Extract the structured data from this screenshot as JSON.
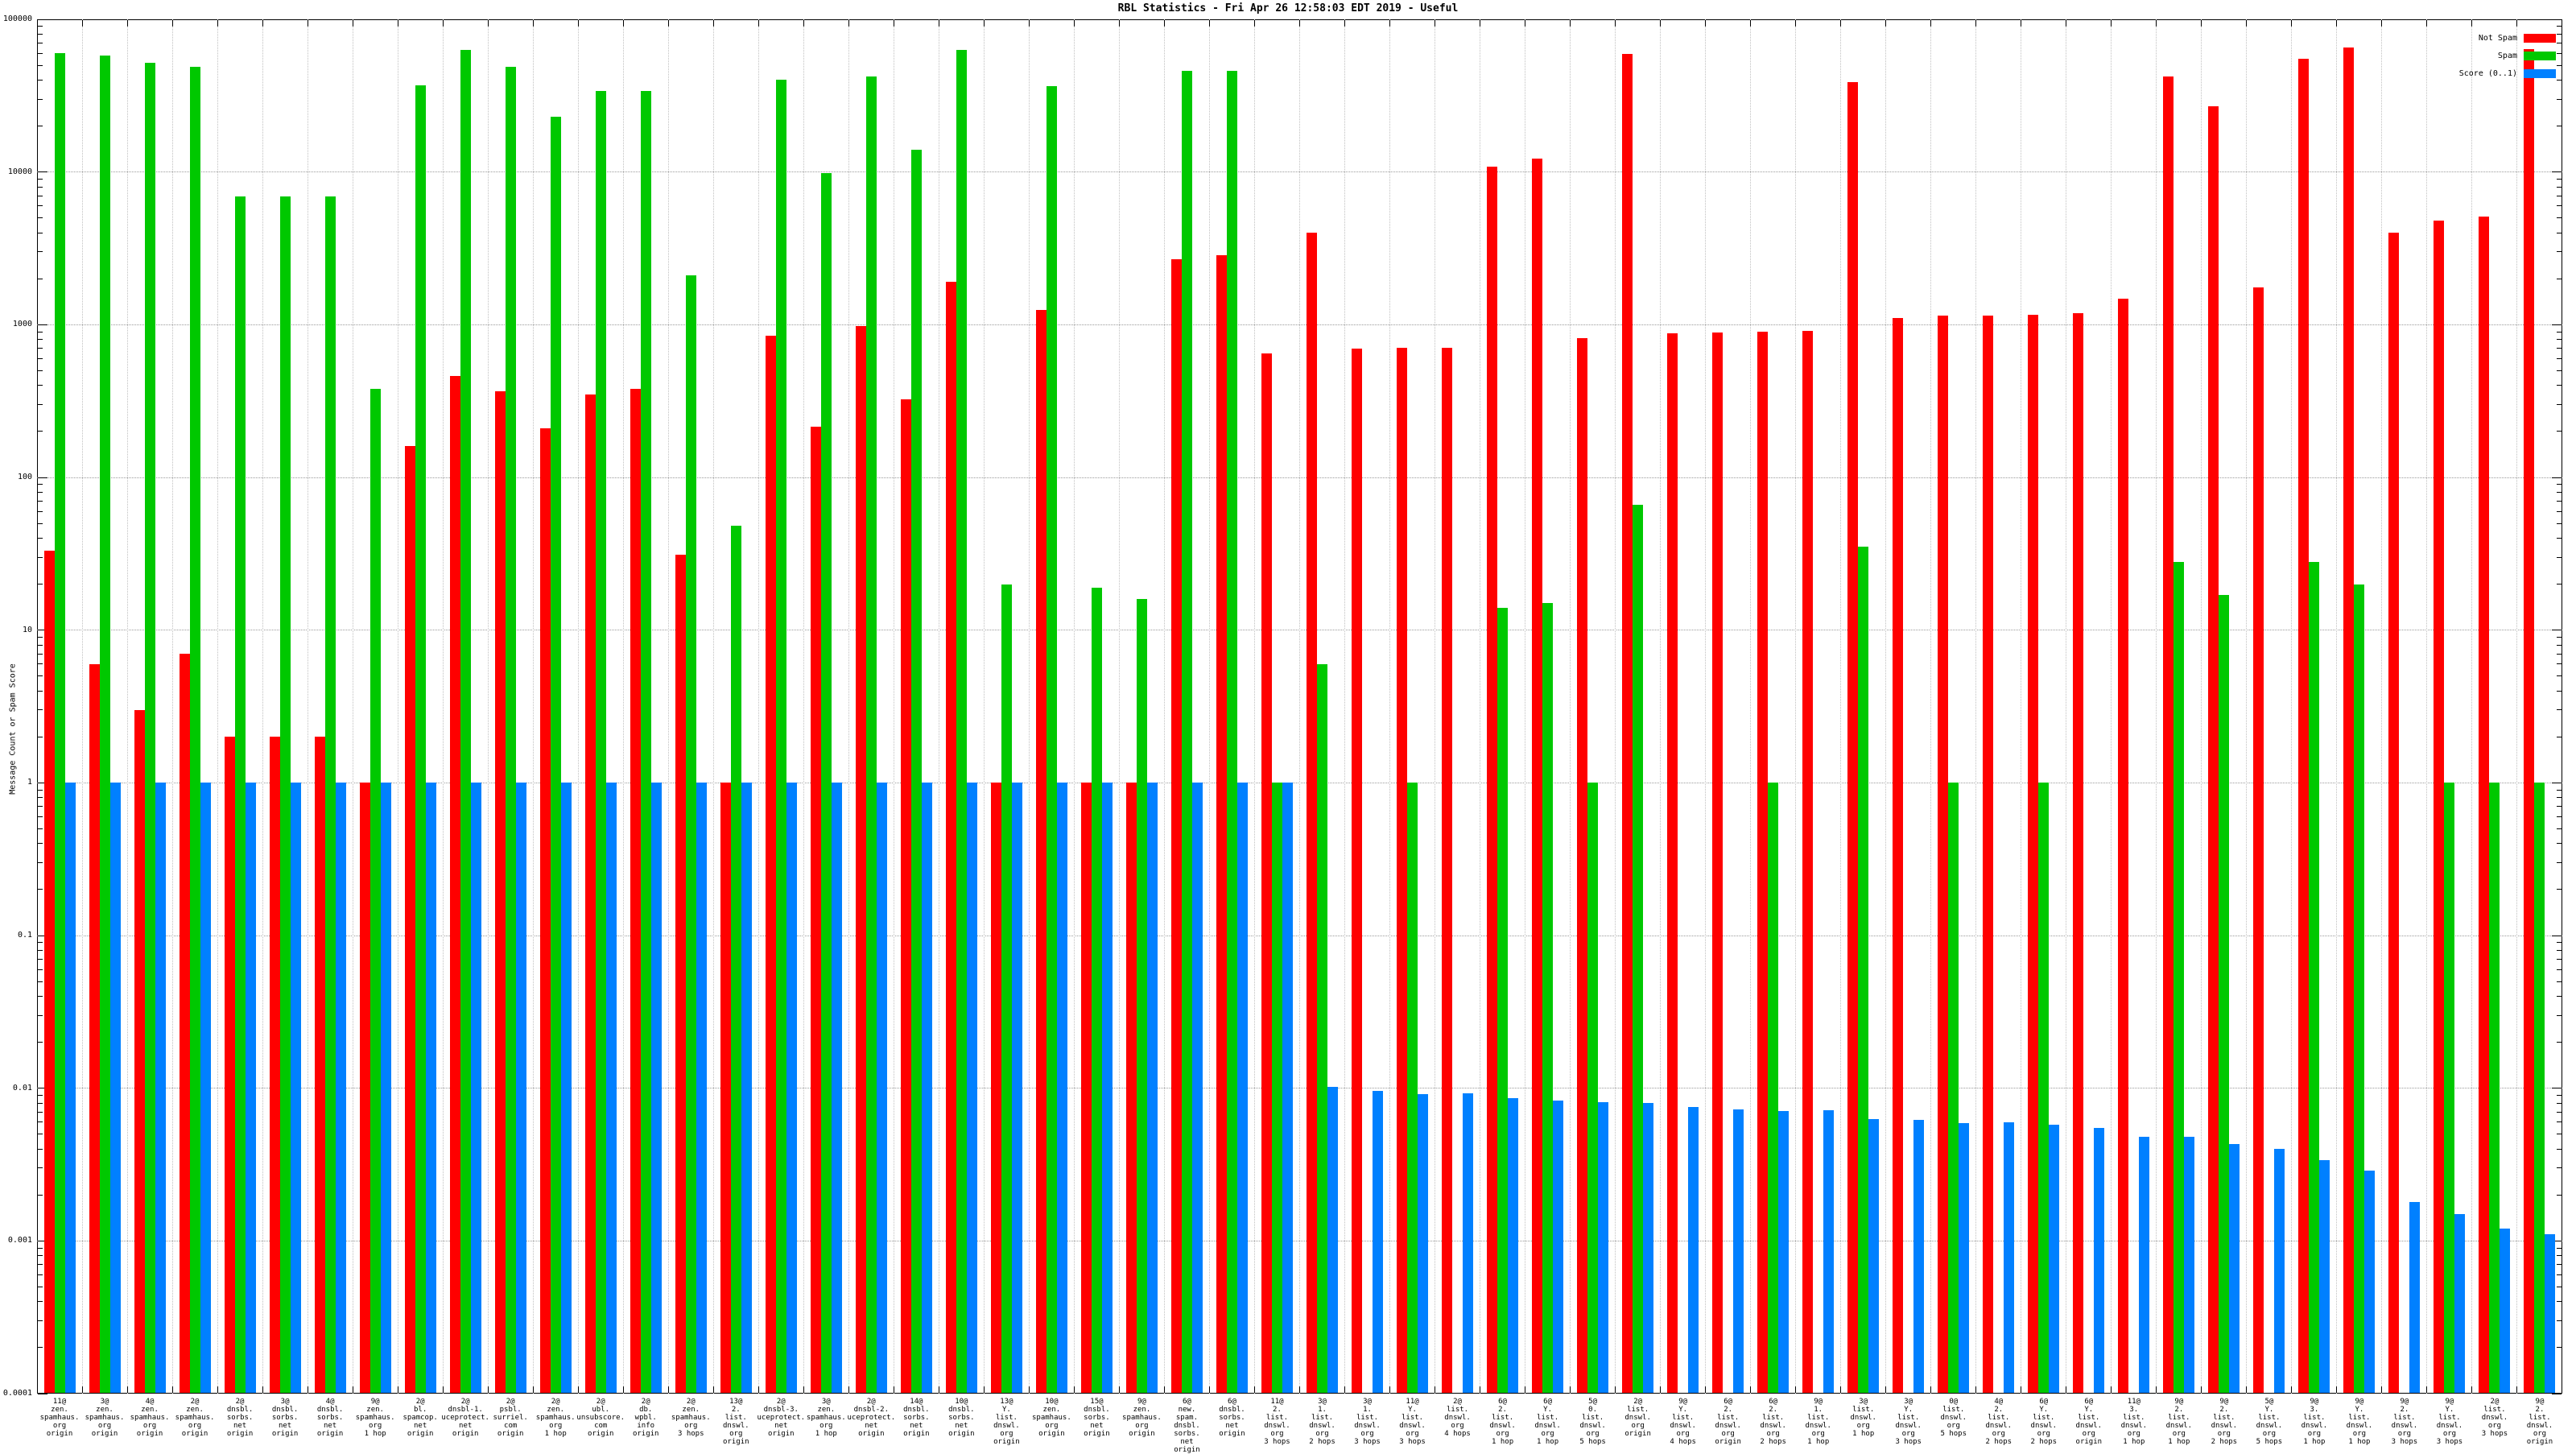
{
  "title": "RBL Statistics - Fri Apr 26 12:58:03 EDT 2019 - Useful",
  "colors": {
    "not_spam": "#ff0000",
    "spam": "#00c800",
    "score": "#0080ff",
    "grid": "#9a9a9a",
    "axis": "#000000",
    "background": "#ffffff"
  },
  "chart_data": {
    "type": "bar",
    "title": "RBL Statistics - Fri Apr 26 12:58:03 EDT 2019 - Useful",
    "xlabel": "",
    "ylabel": "Message Count or Spam Score",
    "y_scale": "log",
    "ylim": [
      0.0001,
      100000
    ],
    "y_ticks": [
      "100000",
      "10000",
      "1000",
      "100",
      "10",
      "1",
      "0.1",
      "0.01",
      "0.001",
      "0.0001"
    ],
    "grid": true,
    "legend_position": "top-right-inside",
    "legend": [
      {
        "label": "Not Spam",
        "color": "#ff0000"
      },
      {
        "label": "Spam",
        "color": "#00c800"
      },
      {
        "label": "Score (0..1)",
        "color": "#0080ff"
      }
    ],
    "categories": [
      [
        "11@",
        "zen.",
        "spamhaus.",
        "org",
        "origin"
      ],
      [
        "3@",
        "zen.",
        "spamhaus.",
        "org",
        "origin"
      ],
      [
        "4@",
        "zen.",
        "spamhaus.",
        "org",
        "origin"
      ],
      [
        "2@",
        "zen.",
        "spamhaus.",
        "org",
        "origin"
      ],
      [
        "2@",
        "dnsbl.",
        "sorbs.",
        "net",
        "origin"
      ],
      [
        "3@",
        "dnsbl.",
        "sorbs.",
        "net",
        "origin"
      ],
      [
        "4@",
        "dnsbl.",
        "sorbs.",
        "net",
        "origin"
      ],
      [
        "9@",
        "zen.",
        "spamhaus.",
        "org",
        "1 hop"
      ],
      [
        "2@",
        "bl.",
        "spamcop.",
        "net",
        "origin"
      ],
      [
        "2@",
        "dnsbl-1.",
        "uceprotect.",
        "net",
        "origin"
      ],
      [
        "2@",
        "psbl.",
        "surriel.",
        "com",
        "origin"
      ],
      [
        "2@",
        "zen.",
        "spamhaus.",
        "org",
        "1 hop"
      ],
      [
        "2@",
        "ubl.",
        "unsubscore.",
        "com",
        "origin"
      ],
      [
        "2@",
        "db.",
        "wpbl.",
        "info",
        "origin"
      ],
      [
        "2@",
        "zen.",
        "spamhaus.",
        "org",
        "3 hops"
      ],
      [
        "13@",
        "2.",
        "list.",
        "dnswl.",
        "org",
        "origin"
      ],
      [
        "2@",
        "dnsbl-3.",
        "uceprotect.",
        "net",
        "origin"
      ],
      [
        "3@",
        "zen.",
        "spamhaus.",
        "org",
        "1 hop"
      ],
      [
        "2@",
        "dnsbl-2.",
        "uceprotect.",
        "net",
        "origin"
      ],
      [
        "14@",
        "dnsbl.",
        "sorbs.",
        "net",
        "origin"
      ],
      [
        "10@",
        "dnsbl.",
        "sorbs.",
        "net",
        "origin"
      ],
      [
        "13@",
        "Y.",
        "list.",
        "dnswl.",
        "org",
        "origin"
      ],
      [
        "10@",
        "zen.",
        "spamhaus.",
        "org",
        "origin"
      ],
      [
        "15@",
        "dnsbl.",
        "sorbs.",
        "net",
        "origin"
      ],
      [
        "9@",
        "zen.",
        "spamhaus.",
        "org",
        "origin"
      ],
      [
        "6@",
        "new.",
        "spam.",
        "dnsbl.",
        "sorbs.",
        "net",
        "origin"
      ],
      [
        "6@",
        "dnsbl.",
        "sorbs.",
        "net",
        "origin"
      ],
      [
        "11@",
        "2.",
        "list.",
        "dnswl.",
        "org",
        "3 hops"
      ],
      [
        "3@",
        "1.",
        "list.",
        "dnswl.",
        "org",
        "2 hops"
      ],
      [
        "3@",
        "1.",
        "list.",
        "dnswl.",
        "org",
        "3 hops"
      ],
      [
        "11@",
        "Y.",
        "list.",
        "dnswl.",
        "org",
        "3 hops"
      ],
      [
        "2@",
        "list.",
        "dnswl.",
        "org",
        "4 hops"
      ],
      [
        "6@",
        "2.",
        "list.",
        "dnswl.",
        "org",
        "1 hop"
      ],
      [
        "6@",
        "Y.",
        "list.",
        "dnswl.",
        "org",
        "1 hop"
      ],
      [
        "5@",
        "0.",
        "list.",
        "dnswl.",
        "org",
        "5 hops"
      ],
      [
        "2@",
        "list.",
        "dnswl.",
        "org",
        "origin"
      ],
      [
        "9@",
        "Y.",
        "list.",
        "dnswl.",
        "org",
        "4 hops"
      ],
      [
        "6@",
        "2.",
        "list.",
        "dnswl.",
        "org",
        "origin"
      ],
      [
        "6@",
        "2.",
        "list.",
        "dnswl.",
        "org",
        "2 hops"
      ],
      [
        "9@",
        "1.",
        "list.",
        "dnswl.",
        "org",
        "1 hop"
      ],
      [
        "3@",
        "list.",
        "dnswl.",
        "org",
        "1 hop"
      ],
      [
        "3@",
        "Y.",
        "list.",
        "dnswl.",
        "org",
        "3 hops"
      ],
      [
        "0@",
        "list.",
        "dnswl.",
        "org",
        "5 hops"
      ],
      [
        "4@",
        "2.",
        "list.",
        "dnswl.",
        "org",
        "2 hops"
      ],
      [
        "6@",
        "Y.",
        "list.",
        "dnswl.",
        "org",
        "2 hops"
      ],
      [
        "6@",
        "Y.",
        "list.",
        "dnswl.",
        "org",
        "origin"
      ],
      [
        "11@",
        "3.",
        "list.",
        "dnswl.",
        "org",
        "1 hop"
      ],
      [
        "9@",
        "2.",
        "list.",
        "dnswl.",
        "org",
        "1 hop"
      ],
      [
        "9@",
        "2.",
        "list.",
        "dnswl.",
        "org",
        "2 hops"
      ],
      [
        "5@",
        "Y.",
        "list.",
        "dnswl.",
        "org",
        "5 hops"
      ],
      [
        "9@",
        "3.",
        "list.",
        "dnswl.",
        "org",
        "1 hop"
      ],
      [
        "9@",
        "Y.",
        "list.",
        "dnswl.",
        "org",
        "1 hop"
      ],
      [
        "9@",
        "2.",
        "list.",
        "dnswl.",
        "org",
        "3 hops"
      ],
      [
        "9@",
        "Y.",
        "list.",
        "dnswl.",
        "org",
        "3 hops"
      ],
      [
        "2@",
        "list.",
        "dnswl.",
        "org",
        "3 hops"
      ],
      [
        "9@",
        "2.",
        "list.",
        "dnswl.",
        "org",
        "origin"
      ]
    ],
    "series": [
      {
        "name": "Not Spam",
        "color": "#ff0000",
        "values": [
          33,
          6,
          3,
          7,
          2,
          2,
          2,
          1,
          160,
          460,
          365,
          210,
          350,
          380,
          31,
          1,
          850,
          215,
          980,
          325,
          1900,
          1,
          1250,
          1,
          1,
          2700,
          2850,
          650,
          4000,
          700,
          710,
          705,
          10800,
          12200,
          820,
          59000,
          880,
          890,
          900,
          910,
          39000,
          1100,
          1150,
          1150,
          1160,
          1190,
          1480,
          42000,
          27000,
          1760,
          55000,
          65000,
          4000,
          4800,
          5100,
          64000
        ]
      },
      {
        "name": "Spam",
        "color": "#00c800",
        "values": [
          60000,
          58000,
          52000,
          49000,
          6900,
          6900,
          6900,
          380,
          37000,
          63000,
          49000,
          23000,
          34000,
          34000,
          2100,
          48,
          40000,
          9800,
          42000,
          14000,
          63000,
          20,
          36500,
          19,
          16,
          46000,
          46000,
          1,
          6,
          null,
          1,
          null,
          14,
          15,
          1,
          66,
          null,
          null,
          1,
          null,
          35,
          null,
          1,
          null,
          1,
          null,
          null,
          28,
          17,
          null,
          28,
          20,
          null,
          1,
          1,
          1
        ]
      },
      {
        "name": "Score (0..1)",
        "color": "#0080ff",
        "values": [
          1,
          1,
          1,
          1,
          1,
          1,
          1,
          1,
          1,
          1,
          1,
          1,
          1,
          1,
          1,
          1,
          1,
          1,
          1,
          1,
          1,
          1,
          1,
          1,
          1,
          1,
          1,
          1,
          0.0102,
          0.0096,
          0.0091,
          0.0093,
          0.0086,
          0.0083,
          0.0081,
          0.008,
          0.0075,
          0.0073,
          0.0071,
          0.0072,
          0.0063,
          0.0062,
          0.0059,
          0.006,
          0.0058,
          0.0055,
          0.0048,
          0.0048,
          0.0043,
          0.004,
          0.0034,
          0.0029,
          0.0018,
          0.0015,
          0.0012,
          0.0011
        ]
      }
    ]
  }
}
